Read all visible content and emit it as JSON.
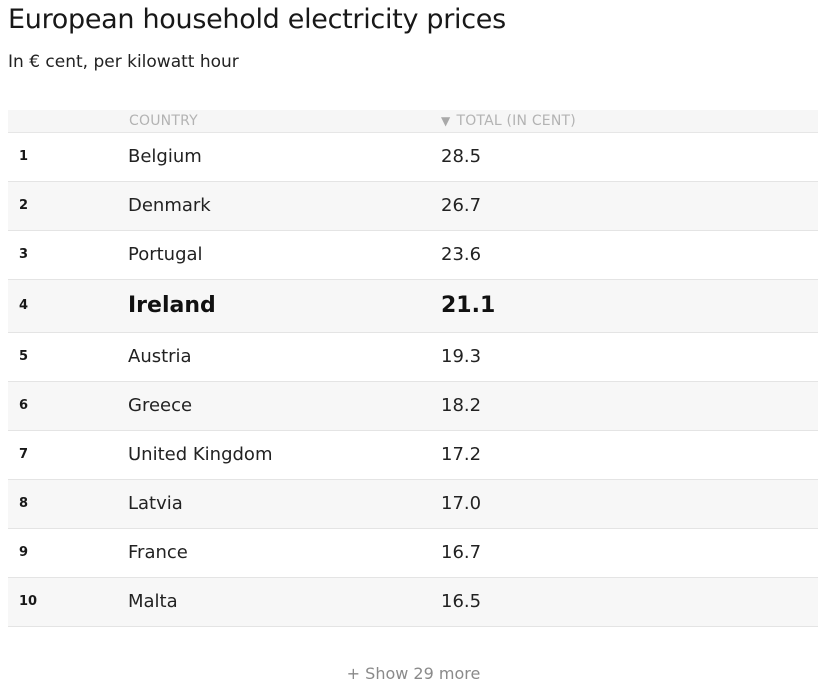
{
  "title": "European household electricity prices",
  "subtitle": "In € cent, per kilowatt hour",
  "table": {
    "columns": {
      "country": "COUNTRY",
      "total": "TOTAL (IN CENT)"
    },
    "sort_icon": "▼"
  },
  "chart_data": {
    "type": "table",
    "title": "European household electricity prices",
    "subtitle": "In € cent, per kilowatt hour",
    "columns": [
      "COUNTRY",
      "TOTAL (IN CENT)"
    ],
    "rows": [
      {
        "rank": "1",
        "country": "Belgium",
        "total": "28.5"
      },
      {
        "rank": "2",
        "country": "Denmark",
        "total": "26.7"
      },
      {
        "rank": "3",
        "country": "Portugal",
        "total": "23.6"
      },
      {
        "rank": "4",
        "country": "Ireland",
        "total": "21.1",
        "highlight": true
      },
      {
        "rank": "5",
        "country": "Austria",
        "total": "19.3"
      },
      {
        "rank": "6",
        "country": "Greece",
        "total": "18.2"
      },
      {
        "rank": "7",
        "country": "United Kingdom",
        "total": "17.2"
      },
      {
        "rank": "8",
        "country": "Latvia",
        "total": "17.0"
      },
      {
        "rank": "9",
        "country": "France",
        "total": "16.7"
      },
      {
        "rank": "10",
        "country": "Malta",
        "total": "16.5"
      }
    ]
  },
  "show_more": "+ Show 29 more"
}
